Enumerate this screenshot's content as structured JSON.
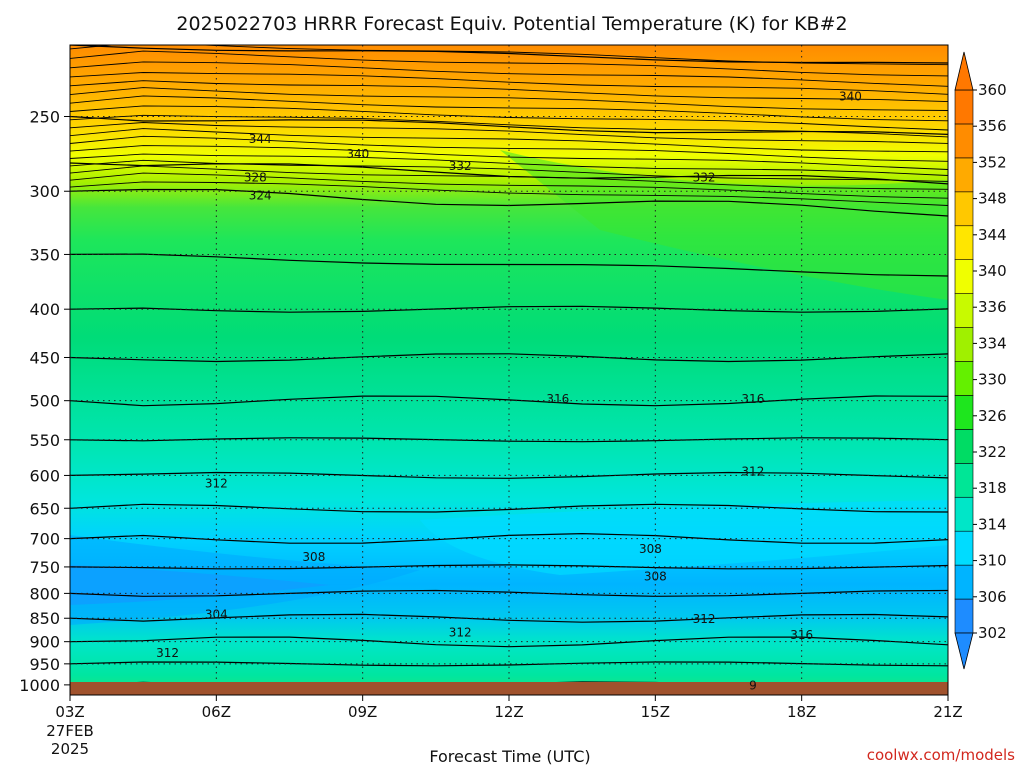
{
  "chart_data": {
    "type": "heatmap",
    "title": "2025022703 HRRR Forecast Equiv. Potential Temperature (K) for KB#2",
    "xlabel": "Forecast Time (UTC)",
    "ylabel": "",
    "x_ticks": [
      "03Z",
      "06Z",
      "09Z",
      "12Z",
      "15Z",
      "18Z",
      "21Z"
    ],
    "x_date_lines": [
      "27FEB",
      "2025"
    ],
    "x_range_hours": [
      3,
      21
    ],
    "y_ticks": [
      250,
      300,
      350,
      400,
      450,
      500,
      550,
      600,
      650,
      700,
      750,
      800,
      850,
      900,
      950,
      1000
    ],
    "y_scale": "log",
    "y_range_hpa": [
      210,
      1025
    ],
    "grid": true,
    "colorbar": {
      "labels": [
        302,
        306,
        310,
        314,
        318,
        322,
        326,
        330,
        334,
        336,
        340,
        344,
        348,
        352,
        356,
        360
      ],
      "colors": [
        "#1e8cff",
        "#00b4ff",
        "#00dcff",
        "#00e6c8",
        "#00e696",
        "#00dc64",
        "#1ee61e",
        "#64f000",
        "#a0f000",
        "#c8fa00",
        "#f0ff00",
        "#ffe600",
        "#ffc800",
        "#ffaa00",
        "#ff8c00",
        "#ff7800"
      ]
    },
    "contour_labels": [
      {
        "value": "340",
        "time": 19.0,
        "p": 238
      },
      {
        "value": "344",
        "time": 6.9,
        "p": 264
      },
      {
        "value": "340",
        "time": 8.9,
        "p": 274
      },
      {
        "value": "332",
        "time": 11.0,
        "p": 282
      },
      {
        "value": "332",
        "time": 16.0,
        "p": 290
      },
      {
        "value": "328",
        "time": 6.8,
        "p": 290
      },
      {
        "value": "324",
        "time": 6.9,
        "p": 303
      },
      {
        "value": "316",
        "time": 13.0,
        "p": 498
      },
      {
        "value": "316",
        "time": 17.0,
        "p": 498
      },
      {
        "value": "312",
        "time": 17.0,
        "p": 594
      },
      {
        "value": "312",
        "time": 6.0,
        "p": 612
      },
      {
        "value": "308",
        "time": 8.0,
        "p": 732
      },
      {
        "value": "308",
        "time": 14.9,
        "p": 718
      },
      {
        "value": "308",
        "time": 15.0,
        "p": 768
      },
      {
        "value": "304",
        "time": 6.0,
        "p": 842
      },
      {
        "value": "312",
        "time": 11.0,
        "p": 880
      },
      {
        "value": "312",
        "time": 16.0,
        "p": 852
      },
      {
        "value": "316",
        "time": 18.0,
        "p": 886
      },
      {
        "value": "312",
        "time": 5.0,
        "p": 925
      },
      {
        "value": "9",
        "time": 17.0,
        "p": 1002
      }
    ],
    "field_layers": [
      {
        "p": 210,
        "theta_e": 354
      },
      {
        "p": 250,
        "theta_e": 346
      },
      {
        "p": 280,
        "theta_e": 338
      },
      {
        "p": 300,
        "theta_e": 326
      },
      {
        "p": 350,
        "theta_e": 322
      },
      {
        "p": 400,
        "theta_e": 320
      },
      {
        "p": 450,
        "theta_e": 318
      },
      {
        "p": 500,
        "theta_e": 316
      },
      {
        "p": 550,
        "theta_e": 314
      },
      {
        "p": 600,
        "theta_e": 313
      },
      {
        "p": 650,
        "theta_e": 311
      },
      {
        "p": 700,
        "theta_e": 309
      },
      {
        "p": 750,
        "theta_e": 308
      },
      {
        "p": 800,
        "theta_e": 306
      },
      {
        "p": 850,
        "theta_e": 309
      },
      {
        "p": 900,
        "theta_e": 312
      },
      {
        "p": 950,
        "theta_e": 314
      },
      {
        "p": 1000,
        "theta_e": 316
      }
    ]
  },
  "credit": "coolwx.com/models"
}
